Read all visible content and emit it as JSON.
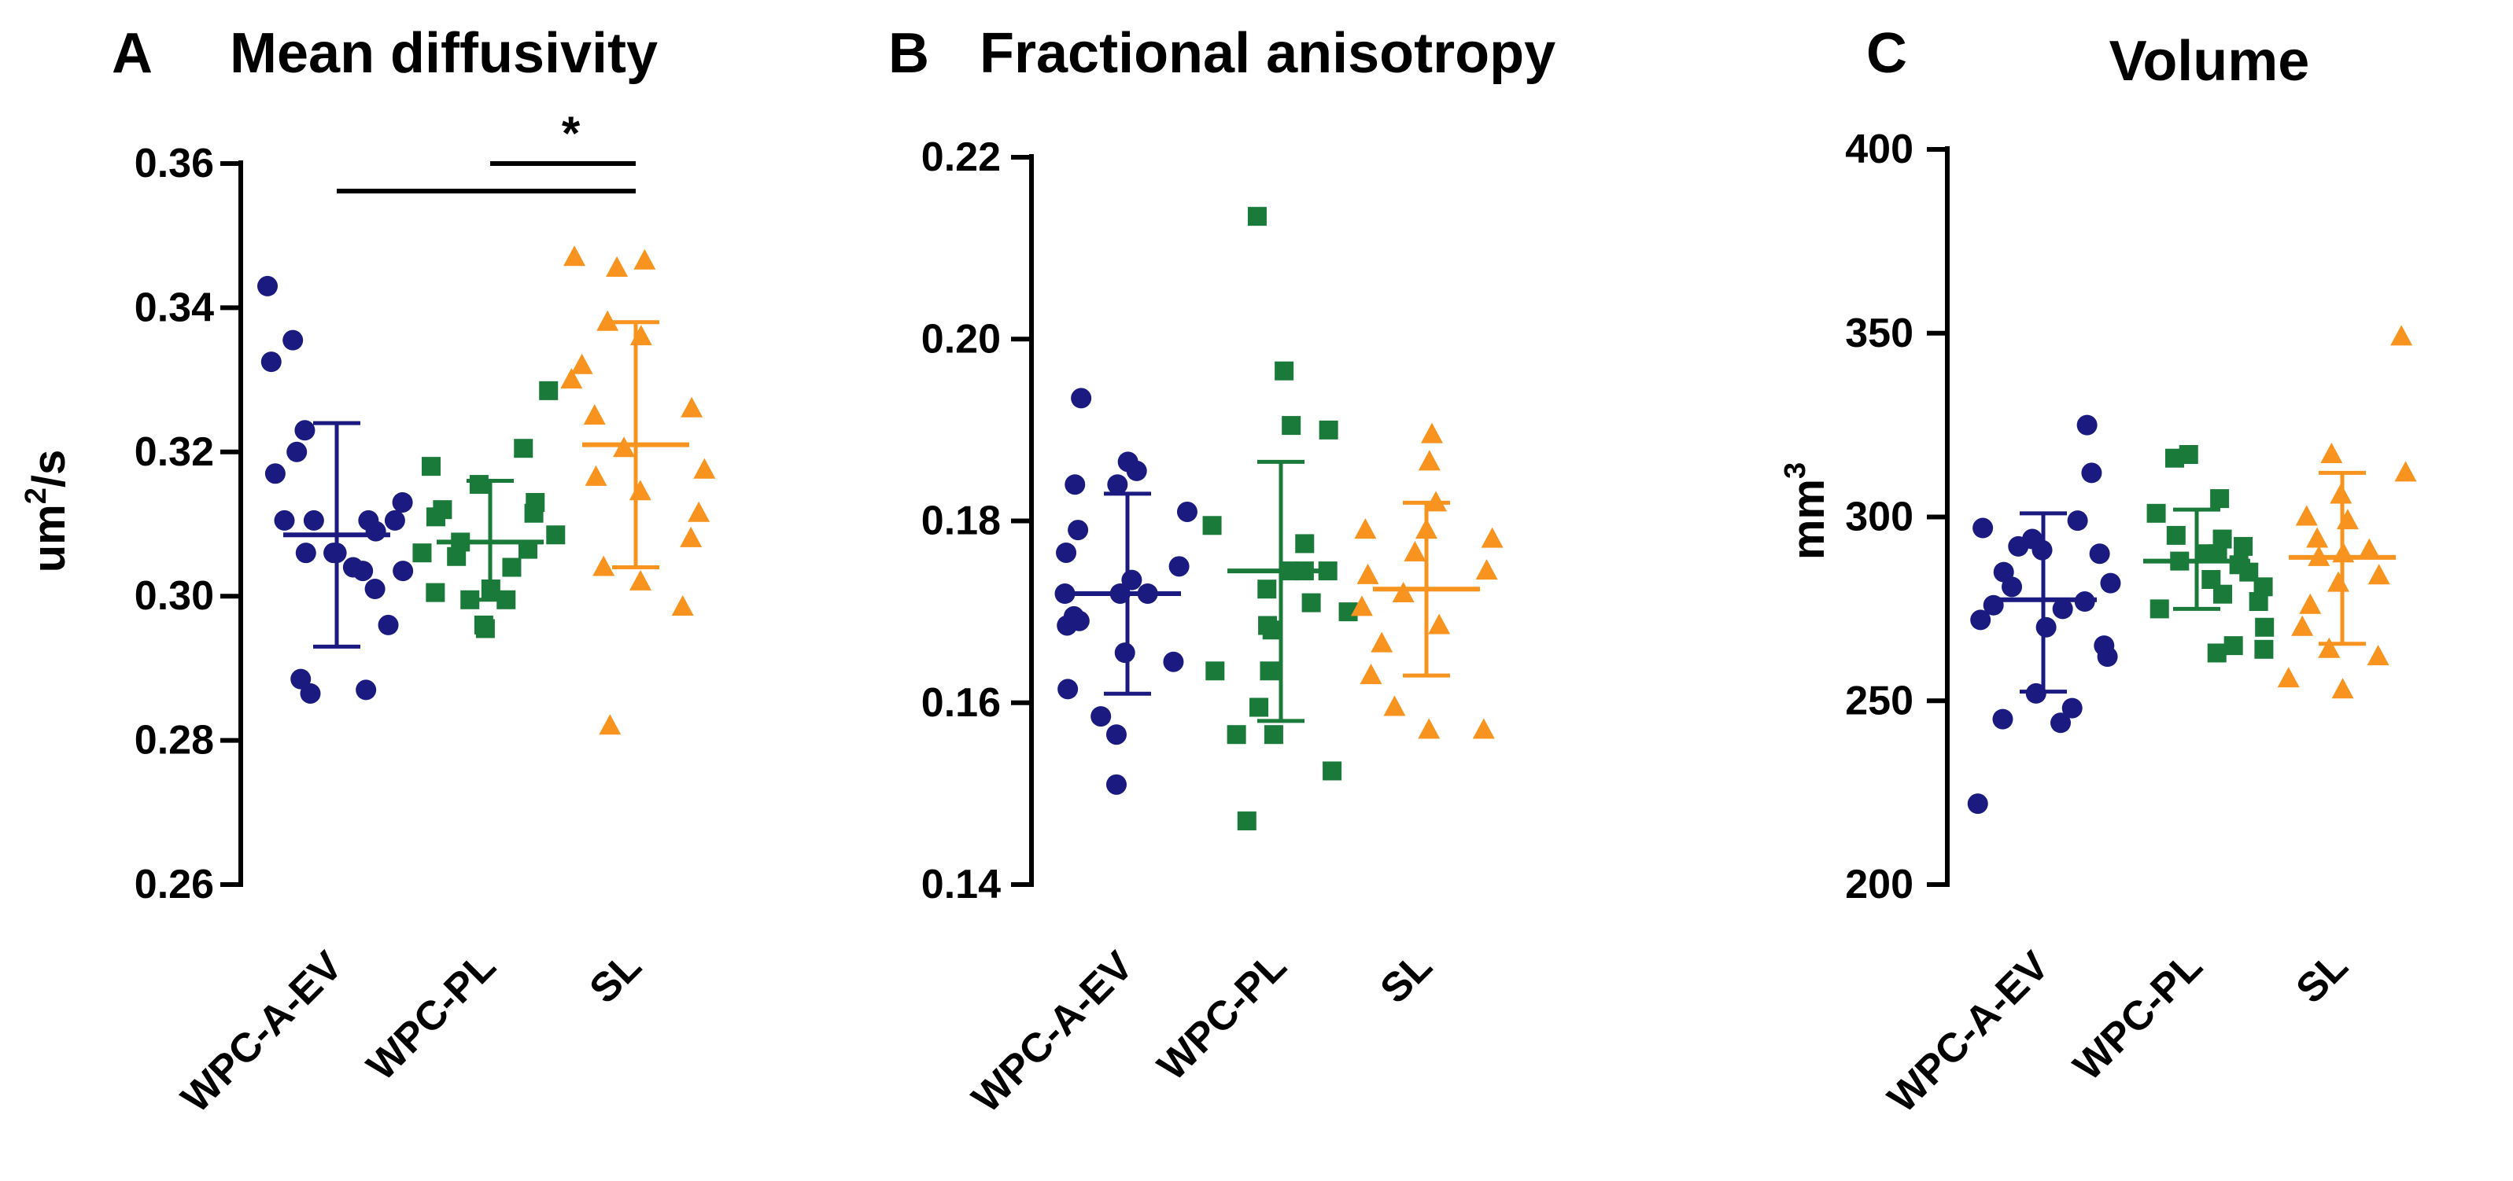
{
  "figure": {
    "colors": {
      "WPC-A-EV": "#1a1a80",
      "WPC-PL": "#1a7a3a",
      "SL": "#f7931e",
      "axis": "#000000"
    },
    "markers": {
      "WPC-A-EV": "circle",
      "WPC-PL": "square",
      "SL": "triangle"
    }
  },
  "chart_data": [
    {
      "type": "scatter",
      "panel_label": "A",
      "title": "Mean diffusivity",
      "xlabel": "",
      "ylabel": "um²/s",
      "ylabel_base": "um",
      "ylabel_sup": "2",
      "ylabel_tail": "/s",
      "categories": [
        "WPC-A-EV",
        "WPC-PL",
        "SL"
      ],
      "ylim": [
        0.26,
        0.36
      ],
      "yticks": [
        0.26,
        0.28,
        0.3,
        0.32,
        0.34,
        0.36
      ],
      "ytick_labels": [
        "0.26",
        "0.28",
        "0.30",
        "0.32",
        "0.34",
        "0.36"
      ],
      "series": [
        {
          "name": "WPC-A-EV",
          "mean": 0.3085,
          "sd_low": 0.293,
          "sd_high": 0.324,
          "values": [
            0.343,
            0.3355,
            0.3325,
            0.323,
            0.32,
            0.317,
            0.313,
            0.3105,
            0.3105,
            0.3105,
            0.3105,
            0.309,
            0.306,
            0.306,
            0.306,
            0.304,
            0.3035,
            0.3035,
            0.301,
            0.296,
            0.2885,
            0.287,
            0.2865
          ]
        },
        {
          "name": "WPC-PL",
          "mean": 0.3075,
          "sd_low": 0.2995,
          "sd_high": 0.316,
          "values": [
            0.3285,
            0.3205,
            0.318,
            0.3155,
            0.313,
            0.312,
            0.3115,
            0.311,
            0.3085,
            0.3075,
            0.3065,
            0.306,
            0.3055,
            0.304,
            0.301,
            0.3005,
            0.2995,
            0.2995,
            0.296,
            0.2955
          ]
        },
        {
          "name": "SL",
          "mean": 0.321,
          "sd_low": 0.304,
          "sd_high": 0.338,
          "values": [
            0.347,
            0.3465,
            0.3455,
            0.338,
            0.336,
            0.332,
            0.33,
            0.326,
            0.325,
            0.3205,
            0.3175,
            0.3165,
            0.3145,
            0.3115,
            0.308,
            0.304,
            0.302,
            0.2985,
            0.282
          ]
        }
      ],
      "significance": [
        {
          "from": "WPC-A-EV",
          "to": "SL",
          "label": ""
        },
        {
          "from": "WPC-PL",
          "to": "SL",
          "label": "*"
        }
      ]
    },
    {
      "type": "scatter",
      "panel_label": "B",
      "title": "Fractional anisotropy",
      "xlabel": "",
      "ylabel": "",
      "categories": [
        "WPC-A-EV",
        "WPC-PL",
        "SL"
      ],
      "ylim": [
        0.14,
        0.22
      ],
      "yticks": [
        0.14,
        0.16,
        0.18,
        0.2,
        0.22
      ],
      "ytick_labels": [
        "0.14",
        "0.16",
        "0.18",
        "0.20",
        "0.22"
      ],
      "series": [
        {
          "name": "WPC-A-EV",
          "mean": 0.172,
          "sd_low": 0.161,
          "sd_high": 0.183,
          "values": [
            0.1935,
            0.1865,
            0.1855,
            0.184,
            0.184,
            0.181,
            0.179,
            0.1765,
            0.175,
            0.1735,
            0.172,
            0.172,
            0.172,
            0.1695,
            0.169,
            0.1685,
            0.1655,
            0.1645,
            0.1615,
            0.1585,
            0.1565,
            0.151
          ]
        },
        {
          "name": "WPC-PL",
          "mean": 0.1745,
          "sd_low": 0.158,
          "sd_high": 0.1865,
          "values": [
            0.2135,
            0.1965,
            0.1905,
            0.19,
            0.1795,
            0.1775,
            0.1745,
            0.1745,
            0.1745,
            0.1725,
            0.171,
            0.17,
            0.1685,
            0.168,
            0.1635,
            0.1635,
            0.1595,
            0.1565,
            0.1565,
            0.1525,
            0.147
          ]
        },
        {
          "name": "SL",
          "mean": 0.1725,
          "sd_low": 0.163,
          "sd_high": 0.182,
          "values": [
            0.1895,
            0.1865,
            0.182,
            0.179,
            0.179,
            0.178,
            0.1765,
            0.1745,
            0.174,
            0.172,
            0.1705,
            0.1685,
            0.1665,
            0.163,
            0.1595,
            0.157,
            0.157
          ]
        }
      ]
    },
    {
      "type": "scatter",
      "panel_label": "C",
      "title": "Volume",
      "xlabel": "",
      "ylabel": "mm³",
      "ylabel_base": "mm",
      "ylabel_sup": "3",
      "ylabel_tail": "",
      "categories": [
        "WPC-A-EV",
        "WPC-PL",
        "SL"
      ],
      "ylim": [
        200,
        400
      ],
      "yticks": [
        200,
        250,
        300,
        350,
        400
      ],
      "ytick_labels": [
        "200",
        "250",
        "300",
        "350",
        "400"
      ],
      "series": [
        {
          "name": "WPC-A-EV",
          "mean": 277.5,
          "sd_low": 252.5,
          "sd_high": 301,
          "values": [
            325,
            312,
            299,
            297,
            294,
            292,
            291,
            290,
            285,
            282,
            281,
            277,
            276,
            275,
            272,
            270,
            265,
            262,
            252,
            248,
            245,
            244,
            222
          ]
        },
        {
          "name": "WPC-PL",
          "mean": 288,
          "sd_low": 275,
          "sd_high": 302,
          "values": [
            317,
            316,
            305,
            301,
            295,
            294,
            292,
            290,
            290,
            288,
            287,
            285,
            283,
            281,
            279,
            277,
            275,
            270,
            265,
            264,
            263
          ]
        },
        {
          "name": "SL",
          "mean": 289,
          "sd_low": 265.5,
          "sd_high": 312,
          "values": [
            349,
            317,
            312,
            306,
            300,
            299,
            294,
            291,
            290,
            289,
            284,
            282,
            276,
            270,
            264,
            262,
            256,
            253
          ]
        }
      ]
    }
  ]
}
